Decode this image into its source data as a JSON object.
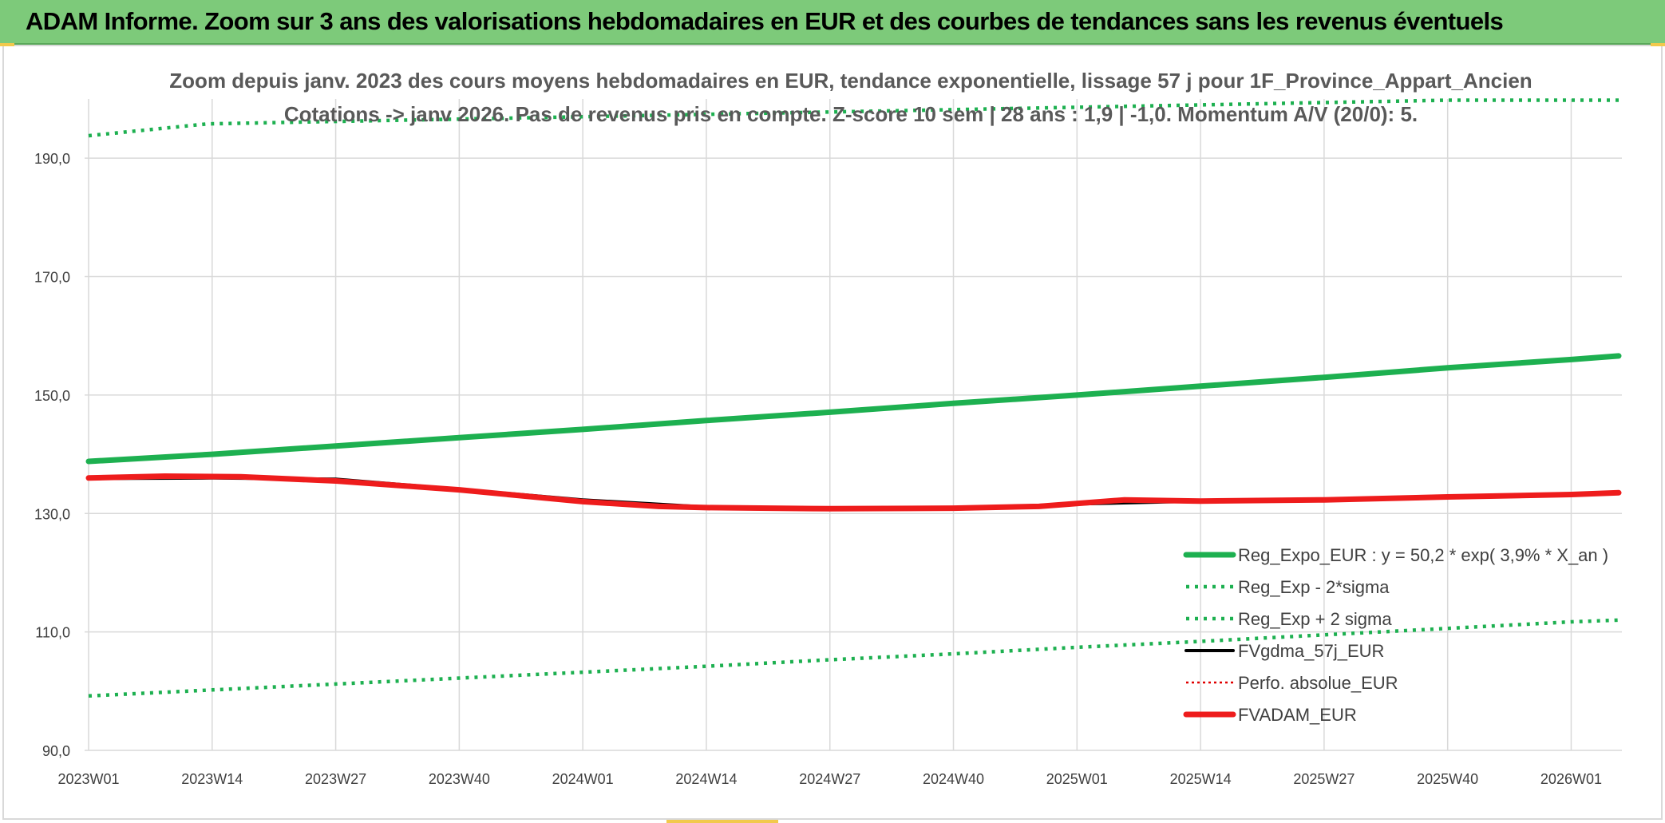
{
  "banner": {
    "title": "ADAM Informe. Zoom sur 3 ans des valorisations hebdomadaires en EUR et des courbes de tendances sans les revenus éventuels"
  },
  "colors": {
    "banner_bg": "#7dca7a",
    "reg_expo": "#1db050",
    "sigma": "#1db050",
    "fvgdma": "#000000",
    "perfo": "#e00000",
    "fvadam": "#ee1c1c",
    "grid": "#d9d9d9"
  },
  "chart_data": {
    "type": "line",
    "title_line1": "Zoom depuis janv. 2023 des cours moyens hebdomadaires en EUR, tendance exponentielle, lissage 57 j pour 1F_Province_Appart_Ancien",
    "title_line2": "Cotations -> janv 2026. Pas de revenus pris en compte. Z-score 10 sem | 28 ans : 1,9 | -1,0. Momentum A/V (20/0): 5.",
    "x_tick_labels": [
      "2023W01",
      "2023W14",
      "2023W27",
      "2023W40",
      "2024W01",
      "2024W14",
      "2024W27",
      "2024W40",
      "2025W01",
      "2025W14",
      "2025W27",
      "2025W40",
      "2026W01"
    ],
    "y_tick_labels": [
      "90,0",
      "110,0",
      "130,0",
      "150,0",
      "170,0",
      "190,0"
    ],
    "y_ticks": [
      90,
      110,
      130,
      150,
      170,
      190
    ],
    "ylim": [
      90,
      200
    ],
    "x_range_weeks": [
      0,
      161
    ],
    "grid": true,
    "legend_position": "lower-right",
    "series": [
      {
        "name": "Reg_Expo_EUR : y = 50,2 * exp( 3,9% *  X_an )",
        "style": "solid-thick",
        "color": "#1db050",
        "points": [
          [
            0,
            138.8
          ],
          [
            13,
            140.0
          ],
          [
            26,
            141.4
          ],
          [
            39,
            142.8
          ],
          [
            52,
            144.2
          ],
          [
            65,
            145.7
          ],
          [
            78,
            147.1
          ],
          [
            91,
            148.6
          ],
          [
            104,
            150.0
          ],
          [
            117,
            151.5
          ],
          [
            130,
            153.0
          ],
          [
            143,
            154.6
          ],
          [
            156,
            156.0
          ],
          [
            161,
            156.6
          ]
        ]
      },
      {
        "name": "Reg_Exp - 2*sigma",
        "style": "dotted",
        "color": "#1db050",
        "points": [
          [
            0,
            99.2
          ],
          [
            13,
            100.2
          ],
          [
            26,
            101.2
          ],
          [
            39,
            102.2
          ],
          [
            52,
            103.2
          ],
          [
            65,
            104.2
          ],
          [
            78,
            105.3
          ],
          [
            91,
            106.3
          ],
          [
            104,
            107.4
          ],
          [
            117,
            108.4
          ],
          [
            130,
            109.5
          ],
          [
            143,
            110.6
          ],
          [
            156,
            111.7
          ],
          [
            161,
            112.0
          ]
        ]
      },
      {
        "name": "Reg_Exp + 2 sigma",
        "style": "dotted",
        "color": "#1db050",
        "points": [
          [
            0,
            193.8
          ],
          [
            12.5,
            195.8
          ],
          [
            143,
            199.8
          ],
          [
            161,
            199.8
          ]
        ]
      },
      {
        "name": "FVgdma_57j_EUR",
        "style": "solid",
        "color": "#000000",
        "points": [
          [
            0,
            135.9
          ],
          [
            13,
            136.0
          ],
          [
            26,
            135.8
          ],
          [
            39,
            134.1
          ],
          [
            52,
            132.3
          ],
          [
            65,
            131.1
          ],
          [
            78,
            130.9
          ],
          [
            91,
            130.9
          ],
          [
            104,
            131.6
          ],
          [
            117,
            132.1
          ],
          [
            130,
            132.4
          ],
          [
            143,
            132.8
          ],
          [
            156,
            133.2
          ],
          [
            161,
            133.4
          ]
        ]
      },
      {
        "name": "Perfo. absolue_EUR",
        "style": "dotted-thin",
        "color": "#e00000",
        "points": []
      },
      {
        "name": "FVADAM_EUR",
        "style": "solid-thick",
        "color": "#ee1c1c",
        "points": [
          [
            0,
            136.0
          ],
          [
            8,
            136.3
          ],
          [
            16,
            136.2
          ],
          [
            26,
            135.5
          ],
          [
            39,
            134.0
          ],
          [
            52,
            132.0
          ],
          [
            60,
            131.2
          ],
          [
            65,
            131.0
          ],
          [
            78,
            130.8
          ],
          [
            91,
            130.9
          ],
          [
            100,
            131.2
          ],
          [
            109,
            132.3
          ],
          [
            117,
            132.1
          ],
          [
            130,
            132.3
          ],
          [
            143,
            132.8
          ],
          [
            156,
            133.2
          ],
          [
            161,
            133.5
          ]
        ]
      }
    ]
  }
}
